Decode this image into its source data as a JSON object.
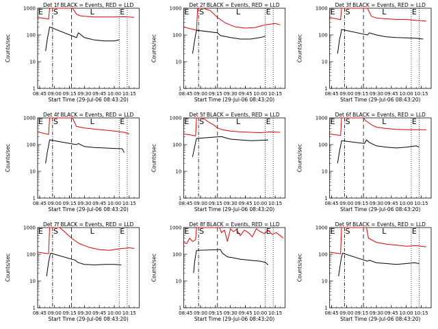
{
  "chart_data": {
    "type": "line",
    "yscale": "log",
    "ylim": [
      1,
      1000
    ],
    "xlim": [
      "08:43",
      "10:25"
    ],
    "y_ticks": [
      "1",
      "10",
      "100",
      "1000"
    ],
    "x_ticks": [
      "08:45",
      "09:00",
      "09:15",
      "09:30",
      "09:45",
      "10:00",
      "10:15"
    ],
    "ylabel": "Counts/sec",
    "xlabel": "Start Time (29-Jul-06 08:43:20)",
    "colors": {
      "events": "#000000",
      "lld": "#dd0000"
    },
    "panels": [
      {
        "title": "Det 1f BLACK = Events, RED = LLD",
        "markers": {
          "E1": "08:43",
          "S": "08:58",
          "L": "09:35",
          "E2": "10:05"
        },
        "vlines": {
          "dot_dash": [
            "08:58"
          ],
          "dash": [
            "09:17"
          ],
          "dot": [
            "10:05",
            "10:13"
          ]
        },
        "lld": {
          "x": [
            "08:43",
            "08:50",
            "08:54",
            "08:55",
            "09:18",
            "09:22",
            "09:26",
            "09:30",
            "09:40",
            "09:50",
            "10:00",
            "10:10",
            "10:20"
          ],
          "y": [
            450,
            420,
            390,
            1000,
            1000,
            600,
            520,
            500,
            470,
            470,
            470,
            480,
            460
          ]
        },
        "events": {
          "x": [
            "08:51",
            "08:53",
            "08:54",
            "08:55",
            "09:22",
            "09:24",
            "09:30",
            "09:40",
            "09:50",
            "10:00",
            "10:05"
          ],
          "y": [
            25,
            80,
            120,
            200,
            80,
            120,
            80,
            65,
            60,
            60,
            65
          ]
        }
      },
      {
        "title": "Det 2f BLACK = Events, RED = LLD",
        "markers": {
          "E1": "08:43",
          "S": "08:58",
          "L": "09:35",
          "E2": "10:05"
        },
        "vlines": {
          "dot_dash": [
            "08:58"
          ],
          "dash": [
            "09:17"
          ],
          "dot": [
            "10:05",
            "10:13"
          ]
        },
        "lld": {
          "x": [
            "08:43",
            "08:50",
            "08:56",
            "08:57",
            "09:03",
            "09:10",
            "09:17",
            "09:25",
            "09:35",
            "09:45",
            "09:55",
            "10:05",
            "10:15",
            "10:20"
          ],
          "y": [
            200,
            170,
            150,
            1000,
            1000,
            800,
            450,
            280,
            200,
            180,
            190,
            240,
            270,
            240
          ]
        },
        "events": {
          "x": [
            "08:52",
            "08:54",
            "08:55",
            "08:56",
            "09:17",
            "09:20",
            "09:30",
            "09:40",
            "09:50",
            "10:00",
            "10:05"
          ],
          "y": [
            20,
            60,
            100,
            150,
            120,
            95,
            80,
            70,
            70,
            80,
            90
          ]
        }
      },
      {
        "title": "Det 3f BLACK = Events, RED = LLD",
        "markers": {
          "E1": "08:43",
          "S": "08:58",
          "L": "09:35",
          "E2": "10:05"
        },
        "vlines": {
          "dot_dash": [
            "08:58"
          ],
          "dash": [
            "09:17"
          ],
          "dot": [
            "10:05",
            "10:13"
          ]
        },
        "lld": {
          "x": [
            "08:43",
            "08:50",
            "08:54",
            "08:55",
            "09:21",
            "09:25",
            "09:30",
            "09:40",
            "09:50",
            "10:00",
            "10:10",
            "10:20"
          ],
          "y": [
            450,
            400,
            370,
            1000,
            1000,
            500,
            430,
            400,
            380,
            380,
            350,
            330
          ]
        },
        "events": {
          "x": [
            "08:51",
            "08:53",
            "08:54",
            "08:55",
            "09:21",
            "09:23",
            "09:30",
            "09:40",
            "09:50",
            "10:00",
            "10:10",
            "10:17"
          ],
          "y": [
            20,
            70,
            100,
            160,
            100,
            120,
            100,
            85,
            80,
            78,
            75,
            70
          ]
        }
      },
      {
        "title": "Det 4f BLACK = Events, RED = LLD",
        "markers": {
          "E1": "08:43",
          "S": "08:58",
          "L": "09:35",
          "E2": "10:05"
        },
        "vlines": {
          "dot_dash": [
            "08:58"
          ],
          "dash": [
            "09:17"
          ],
          "dot": [
            "10:05",
            "10:13"
          ]
        },
        "lld": {
          "x": [
            "08:43",
            "08:50",
            "08:54",
            "08:55",
            "09:18",
            "09:22",
            "09:30",
            "09:40",
            "09:50",
            "10:00",
            "10:10",
            "10:15"
          ],
          "y": [
            300,
            260,
            240,
            1000,
            1000,
            480,
            420,
            380,
            350,
            320,
            290,
            250
          ]
        },
        "events": {
          "x": [
            "08:51",
            "08:53",
            "08:54",
            "08:55",
            "09:22",
            "09:24",
            "09:30",
            "09:40",
            "09:50",
            "10:00",
            "10:08",
            "10:10"
          ],
          "y": [
            20,
            60,
            90,
            150,
            100,
            110,
            85,
            78,
            75,
            72,
            70,
            50
          ]
        }
      },
      {
        "title": "Det 5f BLACK = Events, RED = LLD",
        "markers": {
          "E1": "08:43",
          "S": "08:58",
          "L": "09:35",
          "E2": "10:05"
        },
        "vlines": {
          "dot_dash": [
            "08:58"
          ],
          "dash": [
            "09:17"
          ],
          "dot": [
            "10:05",
            "10:13"
          ]
        },
        "lld": {
          "x": [
            "08:43",
            "08:50",
            "08:55",
            "08:56",
            "09:02",
            "09:08",
            "09:13",
            "09:17",
            "09:22",
            "09:30",
            "09:40",
            "09:50",
            "10:00",
            "10:10",
            "10:20"
          ],
          "y": [
            250,
            230,
            210,
            1000,
            1000,
            700,
            550,
            420,
            360,
            320,
            300,
            290,
            280,
            300,
            290
          ]
        },
        "events": {
          "x": [
            "08:52",
            "08:54",
            "08:55",
            "08:56",
            "09:21",
            "09:25",
            "09:30",
            "09:40",
            "09:50",
            "10:00",
            "10:08"
          ],
          "y": [
            35,
            80,
            120,
            170,
            200,
            180,
            160,
            150,
            140,
            145,
            150
          ]
        }
      },
      {
        "title": "Det 6f BLACK = Events, RED = LLD",
        "markers": {
          "E1": "08:43",
          "S": "08:58",
          "L": "09:35",
          "E2": "10:05"
        },
        "vlines": {
          "dot_dash": [
            "08:58"
          ],
          "dash": [
            "09:17"
          ],
          "dot": [
            "10:05",
            "10:13"
          ]
        },
        "lld": {
          "x": [
            "08:43",
            "08:50",
            "08:54",
            "08:55",
            "09:17",
            "09:19",
            "09:25",
            "09:30",
            "09:40",
            "09:50",
            "10:00",
            "10:10",
            "10:20"
          ],
          "y": [
            250,
            230,
            220,
            1000,
            1000,
            800,
            550,
            450,
            400,
            370,
            360,
            360,
            360
          ]
        },
        "events": {
          "x": [
            "08:51",
            "08:53",
            "08:54",
            "08:55",
            "09:18",
            "09:20",
            "09:23",
            "09:30",
            "09:40",
            "09:50",
            "10:00",
            "10:10",
            "10:13"
          ],
          "y": [
            20,
            60,
            90,
            140,
            110,
            150,
            120,
            90,
            80,
            75,
            80,
            90,
            80
          ]
        }
      },
      {
        "title": "Det 7f BLACK = Events, RED = LLD",
        "markers": {
          "E1": "08:43",
          "S": "08:58",
          "L": "09:35",
          "E2": "10:05"
        },
        "vlines": {
          "dot_dash": [
            "08:58"
          ],
          "dash": [
            "09:17"
          ],
          "dot": [
            "10:05",
            "10:13"
          ]
        },
        "lld": {
          "x": [
            "08:43",
            "08:50",
            "08:54",
            "08:55",
            "09:05",
            "09:10",
            "09:17",
            "09:25",
            "09:35",
            "09:45",
            "09:55",
            "10:05",
            "10:15",
            "10:20"
          ],
          "y": [
            120,
            110,
            105,
            1000,
            1000,
            700,
            400,
            250,
            180,
            150,
            140,
            160,
            175,
            165
          ]
        },
        "events": {
          "x": [
            "08:52",
            "08:54",
            "08:55",
            "08:56",
            "09:21",
            "09:23",
            "09:30",
            "09:40",
            "09:50",
            "10:00",
            "10:07"
          ],
          "y": [
            15,
            50,
            80,
            110,
            60,
            50,
            42,
            40,
            42,
            42,
            40
          ]
        }
      },
      {
        "title": "Det 8f BLACK = Events, RED = LLD",
        "markers": {
          "E1": "08:43",
          "S": "08:58",
          "L": "09:35",
          "E2": "10:05"
        },
        "vlines": {
          "dot_dash": [
            "08:58"
          ],
          "dash": [
            "09:17"
          ],
          "dot": [
            "10:05",
            "10:13"
          ]
        },
        "lld": {
          "x": [
            "08:43",
            "08:46",
            "08:49",
            "08:52",
            "08:55",
            "08:56",
            "09:19",
            "09:21",
            "09:24",
            "09:27",
            "09:30",
            "09:33",
            "09:36",
            "09:40",
            "09:44",
            "09:48",
            "09:52",
            "09:56",
            "10:00",
            "10:04",
            "10:08",
            "10:12",
            "10:16",
            "10:20",
            "10:23"
          ],
          "y": [
            280,
            250,
            400,
            300,
            350,
            1000,
            1000,
            650,
            800,
            300,
            900,
            700,
            850,
            500,
            800,
            650,
            450,
            900,
            700,
            600,
            800,
            550,
            650,
            500,
            400
          ]
        },
        "events": {
          "x": [
            "08:53",
            "08:54",
            "08:55",
            "08:56",
            "09:20",
            "09:22",
            "09:27",
            "09:32",
            "09:40",
            "09:50",
            "10:00",
            "10:05",
            "10:08"
          ],
          "y": [
            20,
            50,
            90,
            140,
            150,
            110,
            80,
            75,
            65,
            60,
            55,
            50,
            40
          ]
        }
      },
      {
        "title": "Det 9f BLACK = Events, RED = LLD",
        "markers": {
          "E1": "08:43",
          "S": "08:58",
          "L": "09:35",
          "E2": "10:05"
        },
        "vlines": {
          "dot_dash": [
            "08:58"
          ],
          "dash": [
            "09:17"
          ],
          "dot": [
            "10:05",
            "10:13"
          ]
        },
        "lld": {
          "x": [
            "08:43",
            "08:50",
            "08:54",
            "08:55",
            "09:20",
            "09:22",
            "09:30",
            "09:40",
            "09:50",
            "10:00",
            "10:10",
            "10:20"
          ],
          "y": [
            120,
            110,
            105,
            1000,
            1000,
            400,
            280,
            240,
            220,
            200,
            210,
            190
          ]
        },
        "events": {
          "x": [
            "08:52",
            "08:54",
            "08:55",
            "08:56",
            "09:21",
            "09:23",
            "09:30",
            "09:40",
            "09:50",
            "10:00",
            "10:08",
            "10:13"
          ],
          "y": [
            15,
            50,
            80,
            110,
            55,
            60,
            48,
            45,
            42,
            45,
            48,
            45
          ]
        }
      }
    ]
  }
}
